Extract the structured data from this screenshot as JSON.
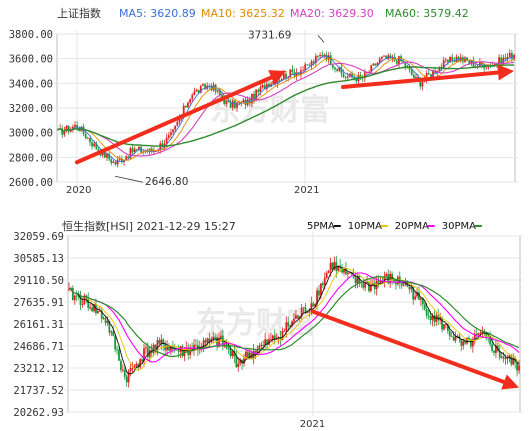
{
  "chart_data": [
    {
      "type": "candlestick",
      "title": "上证指数",
      "legend": [
        {
          "label": "MA5:",
          "value": "3620.89",
          "color": "#3b6fd6"
        },
        {
          "label": "MA10:",
          "value": "3625.32",
          "color": "#e08a00"
        },
        {
          "label": "MA20:",
          "value": "3629.30",
          "color": "#d23fbf"
        },
        {
          "label": "MA60:",
          "value": "3579.42",
          "color": "#2e8b2e"
        }
      ],
      "y_ticks": [
        "3800.00",
        "3600.00",
        "3400.00",
        "3200.00",
        "3000.00",
        "2800.00",
        "2600.00"
      ],
      "x_ticks": [
        "2020",
        "2021"
      ],
      "ylim": [
        2600,
        3800
      ],
      "annotations": [
        {
          "text": "3731.69",
          "value": 3731.69,
          "kind": "high"
        },
        {
          "text": "2646.80",
          "value": 2646.8,
          "kind": "low"
        }
      ],
      "watermark": "东方财富",
      "x": [
        "2019-12",
        "2020-01",
        "2020-02",
        "2020-03",
        "2020-04",
        "2020-05",
        "2020-06",
        "2020-07",
        "2020-08",
        "2020-09",
        "2020-10",
        "2020-11",
        "2020-12",
        "2021-01",
        "2021-02",
        "2021-03",
        "2021-04",
        "2021-05",
        "2021-06",
        "2021-07",
        "2021-08",
        "2021-09",
        "2021-10",
        "2021-11",
        "2021-12"
      ],
      "close": [
        3000,
        3060,
        2880,
        2750,
        2860,
        2850,
        2980,
        3310,
        3390,
        3220,
        3250,
        3400,
        3470,
        3520,
        3650,
        3460,
        3440,
        3600,
        3590,
        3400,
        3530,
        3610,
        3550,
        3560,
        3640
      ],
      "trend_arrows": [
        {
          "from": {
            "x": "2020-01",
            "y": 2760
          },
          "to": {
            "x": "2020-12",
            "y": 3500
          }
        },
        {
          "from": {
            "x": "2021-03",
            "y": 3370
          },
          "to": {
            "x": "2021-12",
            "y": 3500
          }
        }
      ]
    },
    {
      "type": "candlestick",
      "title": "恒生指数[HSI] 2021-12-29 15:27",
      "legend": [
        {
          "label": "5PMA",
          "value": "",
          "color": "#111111"
        },
        {
          "label": "10PMA",
          "value": "",
          "color": "#e8c600"
        },
        {
          "label": "20PMA",
          "value": "",
          "color": "#ff00ff"
        },
        {
          "label": "30PMA",
          "value": "",
          "color": "#2e8b2e"
        }
      ],
      "y_ticks": [
        "32059.69",
        "30585.13",
        "29110.50",
        "27635.91",
        "26161.31",
        "24686.71",
        "23212.12",
        "21737.52",
        "20262.93"
      ],
      "x_ticks": [
        "2021"
      ],
      "ylim": [
        20262.93,
        32059.69
      ],
      "watermark": "东方财富",
      "x": [
        "2019-12",
        "2020-01",
        "2020-02",
        "2020-03",
        "2020-04",
        "2020-05",
        "2020-06",
        "2020-07",
        "2020-08",
        "2020-09",
        "2020-10",
        "2020-11",
        "2020-12",
        "2021-01",
        "2021-02",
        "2021-03",
        "2021-04",
        "2021-05",
        "2021-06",
        "2021-07",
        "2021-08",
        "2021-09",
        "2021-10",
        "2021-11",
        "2021-12"
      ],
      "close": [
        28200,
        27600,
        26400,
        22500,
        24200,
        24800,
        24300,
        24700,
        25100,
        23600,
        24400,
        25200,
        26400,
        27600,
        30200,
        29200,
        28700,
        29200,
        28800,
        27200,
        26000,
        24600,
        25400,
        24100,
        23300
      ],
      "trend_arrows": [
        {
          "from": {
            "x": "2021-01",
            "y": 27000
          },
          "to": {
            "x": "2021-12",
            "y": 21900
          }
        }
      ]
    }
  ]
}
